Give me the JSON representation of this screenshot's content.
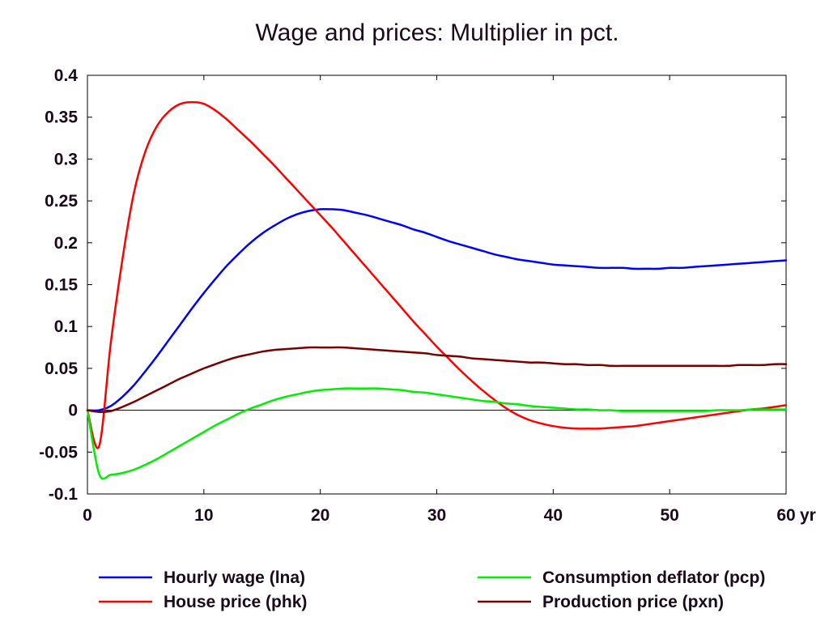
{
  "chart_data": {
    "type": "line",
    "title": "Wage and prices: Multiplier in pct.",
    "xlabel": "",
    "ylabel": "",
    "x_unit": "yr",
    "xlim": [
      0,
      60
    ],
    "ylim": [
      -0.1,
      0.4
    ],
    "x_ticks": [
      0,
      10,
      20,
      30,
      40,
      50,
      60
    ],
    "x_tick_labels": [
      "0",
      "10",
      "20",
      "30",
      "40",
      "50",
      "60"
    ],
    "y_ticks": [
      -0.1,
      -0.05,
      0,
      0.05,
      0.1,
      0.15,
      0.2,
      0.25,
      0.3,
      0.35,
      0.4
    ],
    "y_tick_labels": [
      "-0.1",
      "-0.05",
      "0",
      "0.05",
      "0.1",
      "0.15",
      "0.2",
      "0.25",
      "0.3",
      "0.35",
      "0.4"
    ],
    "grid": false,
    "legend_position": "bottom",
    "series": [
      {
        "name": "Hourly wage (lna)",
        "color": "#0000ff",
        "x": [
          0,
          1,
          2,
          3,
          4,
          5,
          6,
          7,
          8,
          9,
          10,
          11,
          12,
          13,
          14,
          15,
          16,
          17,
          18,
          19,
          20,
          21,
          22,
          23,
          24,
          25,
          26,
          27,
          28,
          29,
          30,
          31,
          32,
          33,
          34,
          35,
          36,
          37,
          38,
          39,
          40,
          41,
          42,
          43,
          44,
          45,
          46,
          47,
          48,
          49,
          50,
          51,
          52,
          53,
          54,
          55,
          56,
          57,
          58,
          59,
          60
        ],
        "y": [
          0,
          0,
          0.005,
          0.016,
          0.03,
          0.047,
          0.065,
          0.084,
          0.103,
          0.122,
          0.14,
          0.157,
          0.173,
          0.187,
          0.2,
          0.211,
          0.22,
          0.228,
          0.234,
          0.238,
          0.24,
          0.24,
          0.239,
          0.236,
          0.233,
          0.229,
          0.225,
          0.221,
          0.216,
          0.212,
          0.207,
          0.202,
          0.198,
          0.194,
          0.19,
          0.186,
          0.183,
          0.18,
          0.178,
          0.176,
          0.174,
          0.173,
          0.172,
          0.171,
          0.17,
          0.17,
          0.17,
          0.169,
          0.169,
          0.169,
          0.17,
          0.17,
          0.171,
          0.172,
          0.173,
          0.174,
          0.175,
          0.176,
          0.177,
          0.178,
          0.179
        ]
      },
      {
        "name": "House price (phk)",
        "color": "#ff0000",
        "x": [
          0,
          1,
          2,
          3,
          4,
          5,
          6,
          7,
          8,
          9,
          10,
          11,
          12,
          13,
          14,
          15,
          16,
          17,
          18,
          19,
          20,
          21,
          22,
          23,
          24,
          25,
          26,
          27,
          28,
          29,
          30,
          31,
          32,
          33,
          34,
          35,
          36,
          37,
          38,
          39,
          40,
          41,
          42,
          43,
          44,
          45,
          46,
          47,
          48,
          49,
          50,
          51,
          52,
          53,
          54,
          55,
          56,
          57,
          58,
          59,
          60
        ],
        "y": [
          0,
          -0.043,
          0.08,
          0.18,
          0.26,
          0.31,
          0.34,
          0.357,
          0.366,
          0.368,
          0.366,
          0.358,
          0.347,
          0.334,
          0.321,
          0.307,
          0.293,
          0.278,
          0.263,
          0.248,
          0.233,
          0.218,
          0.202,
          0.186,
          0.17,
          0.154,
          0.138,
          0.122,
          0.106,
          0.091,
          0.076,
          0.062,
          0.048,
          0.035,
          0.023,
          0.012,
          0.002,
          -0.006,
          -0.012,
          -0.016,
          -0.019,
          -0.021,
          -0.022,
          -0.022,
          -0.022,
          -0.021,
          -0.02,
          -0.019,
          -0.017,
          -0.015,
          -0.013,
          -0.011,
          -0.009,
          -0.007,
          -0.005,
          -0.003,
          -0.001,
          0.001,
          0.002,
          0.004,
          0.006
        ]
      },
      {
        "name": "Consumption deflator (pcp)",
        "color": "#00ee00",
        "x": [
          0,
          1,
          2,
          3,
          4,
          5,
          6,
          7,
          8,
          9,
          10,
          11,
          12,
          13,
          14,
          15,
          16,
          17,
          18,
          19,
          20,
          21,
          22,
          23,
          24,
          25,
          26,
          27,
          28,
          29,
          30,
          31,
          32,
          33,
          34,
          35,
          36,
          37,
          38,
          39,
          40,
          41,
          42,
          43,
          44,
          45,
          46,
          47,
          48,
          49,
          50,
          51,
          52,
          53,
          54,
          55,
          56,
          57,
          58,
          59,
          60
        ],
        "y": [
          0,
          -0.076,
          -0.077,
          -0.075,
          -0.071,
          -0.065,
          -0.058,
          -0.05,
          -0.042,
          -0.034,
          -0.026,
          -0.018,
          -0.011,
          -0.004,
          0.002,
          0.007,
          0.012,
          0.016,
          0.019,
          0.022,
          0.024,
          0.025,
          0.026,
          0.026,
          0.026,
          0.026,
          0.025,
          0.024,
          0.022,
          0.021,
          0.019,
          0.017,
          0.015,
          0.013,
          0.011,
          0.01,
          0.008,
          0.007,
          0.005,
          0.004,
          0.003,
          0.002,
          0.001,
          0.001,
          0.0,
          0.0,
          -0.001,
          -0.001,
          -0.001,
          -0.001,
          -0.001,
          -0.001,
          -0.001,
          -0.001,
          0.0,
          0.0,
          0.0,
          0.001,
          0.001,
          0.001,
          0.001
        ]
      },
      {
        "name": "Production price (pxn)",
        "color": "#7a0000",
        "x": [
          0,
          1,
          2,
          3,
          4,
          5,
          6,
          7,
          8,
          9,
          10,
          11,
          12,
          13,
          14,
          15,
          16,
          17,
          18,
          19,
          20,
          21,
          22,
          23,
          24,
          25,
          26,
          27,
          28,
          29,
          30,
          31,
          32,
          33,
          34,
          35,
          36,
          37,
          38,
          39,
          40,
          41,
          42,
          43,
          44,
          45,
          46,
          47,
          48,
          49,
          50,
          51,
          52,
          53,
          54,
          55,
          56,
          57,
          58,
          59,
          60
        ],
        "y": [
          0,
          -0.002,
          -0.001,
          0.004,
          0.01,
          0.017,
          0.024,
          0.031,
          0.038,
          0.044,
          0.05,
          0.055,
          0.06,
          0.064,
          0.067,
          0.07,
          0.072,
          0.073,
          0.074,
          0.075,
          0.075,
          0.075,
          0.075,
          0.074,
          0.073,
          0.072,
          0.071,
          0.07,
          0.069,
          0.068,
          0.066,
          0.065,
          0.064,
          0.062,
          0.061,
          0.06,
          0.059,
          0.058,
          0.057,
          0.057,
          0.056,
          0.055,
          0.055,
          0.054,
          0.054,
          0.053,
          0.053,
          0.053,
          0.053,
          0.053,
          0.053,
          0.053,
          0.053,
          0.053,
          0.053,
          0.053,
          0.054,
          0.054,
          0.054,
          0.055,
          0.055
        ]
      }
    ]
  }
}
